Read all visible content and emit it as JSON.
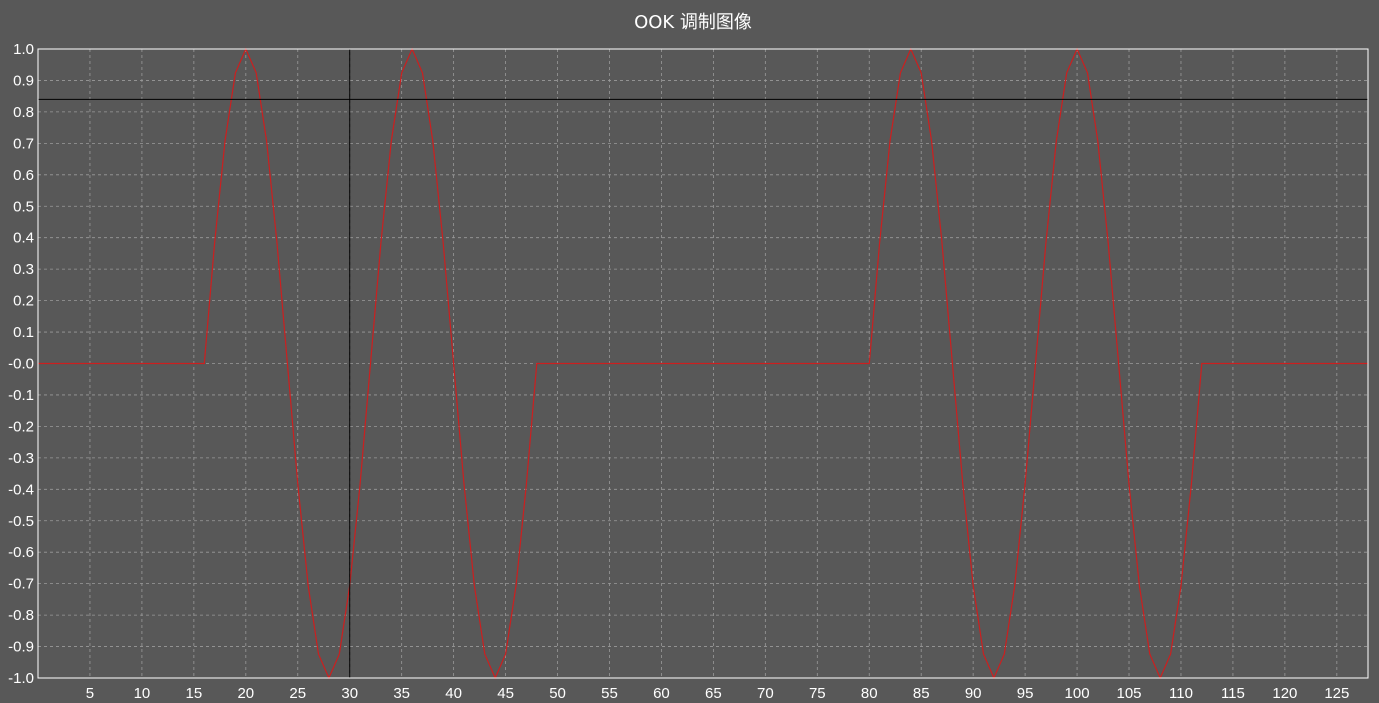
{
  "chart_data": {
    "type": "line",
    "title": "OOK 调制图像",
    "xlabel": "",
    "ylabel": "",
    "xlim": [
      0,
      128
    ],
    "ylim": [
      -1.0,
      1.0
    ],
    "grid": true,
    "xticks": [
      5,
      10,
      15,
      20,
      25,
      30,
      35,
      40,
      45,
      50,
      55,
      60,
      65,
      70,
      75,
      80,
      85,
      90,
      95,
      100,
      105,
      110,
      115,
      120,
      125
    ],
    "yticks": [
      "1.0",
      "0.9",
      "0.8",
      "0.7",
      "0.6",
      "0.5",
      "0.4",
      "0.3",
      "0.2",
      "0.1",
      "-0.0",
      "-0.1",
      "-0.2",
      "-0.3",
      "-0.4",
      "-0.5",
      "-0.6",
      "-0.7",
      "-0.8",
      "-0.9",
      "-1.0"
    ],
    "series": [
      {
        "color": "#cc1f1f",
        "x": [
          0,
          16,
          17,
          18,
          19,
          20,
          21,
          22,
          23,
          24,
          25,
          26,
          27,
          28,
          29,
          30,
          31,
          32,
          33,
          34,
          35,
          36,
          37,
          38,
          39,
          40,
          41,
          42,
          43,
          44,
          45,
          46,
          47,
          48,
          80,
          81,
          82,
          83,
          84,
          85,
          86,
          87,
          88,
          89,
          90,
          91,
          92,
          93,
          94,
          95,
          96,
          97,
          98,
          99,
          100,
          101,
          102,
          103,
          104,
          105,
          106,
          107,
          108,
          109,
          110,
          111,
          112,
          128
        ],
        "y": [
          0,
          0,
          0.383,
          0.707,
          0.924,
          1,
          0.924,
          0.707,
          0.383,
          0,
          -0.383,
          -0.707,
          -0.924,
          -1,
          -0.924,
          -0.707,
          -0.383,
          0,
          0.383,
          0.707,
          0.924,
          1,
          0.924,
          0.707,
          0.383,
          0,
          -0.383,
          -0.707,
          -0.924,
          -1,
          -0.924,
          -0.707,
          -0.383,
          0,
          0,
          0.383,
          0.707,
          0.924,
          1,
          0.924,
          0.707,
          0.383,
          0,
          -0.383,
          -0.707,
          -0.924,
          -1,
          -0.924,
          -0.707,
          -0.383,
          0,
          0.383,
          0.707,
          0.924,
          1,
          0.924,
          0.707,
          0.383,
          0,
          -0.383,
          -0.707,
          -0.924,
          -1,
          -0.924,
          -0.707,
          -0.383,
          0,
          0
        ]
      }
    ],
    "cursor": {
      "x": 30,
      "y": 0.84
    }
  }
}
